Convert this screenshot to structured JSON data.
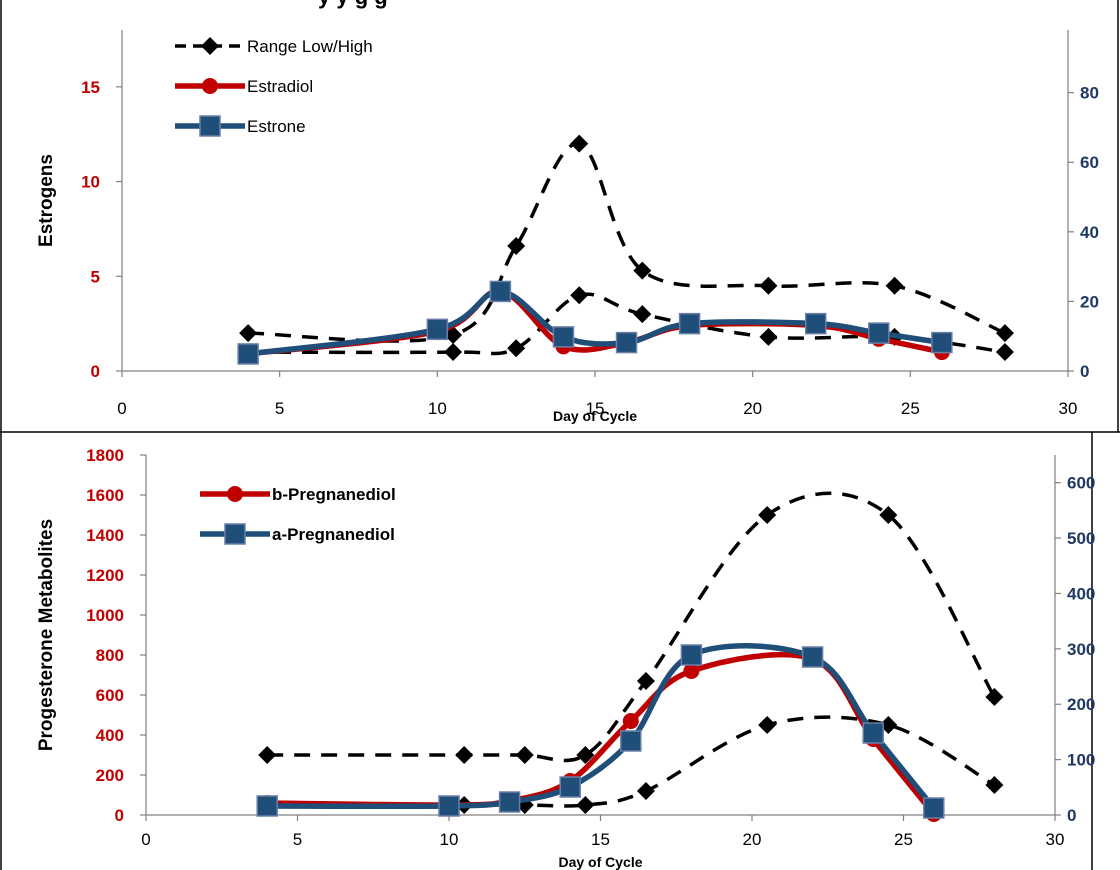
{
  "header": {
    "title_fragment": "y              y   g         g"
  },
  "colors": {
    "red": "#C00000",
    "blue": "#1F4E79",
    "black": "#000000",
    "right_axis": "#1F3864"
  },
  "chart_data": [
    {
      "id": "estrogens",
      "type": "line",
      "xlabel": "Day of Cycle",
      "ylabel": "Estrogens",
      "xlim": [
        0,
        30
      ],
      "xticks": [
        0,
        5,
        10,
        15,
        20,
        25,
        30
      ],
      "ylim_left": [
        0,
        18
      ],
      "yticks_left": [
        0,
        5,
        10,
        15
      ],
      "ylim_right": [
        0,
        98
      ],
      "yticks_right": [
        0,
        20,
        40,
        60,
        80
      ],
      "legend_position": "top-left",
      "series": [
        {
          "name": "Range Low/High",
          "style": "dashed",
          "marker": "diamond",
          "color": "#000000",
          "axis": "left",
          "x": [
            4,
            10.5,
            12.5,
            14.5,
            16.5,
            20.5,
            24.5,
            28
          ],
          "y": [
            2,
            1.9,
            6.6,
            12,
            5.3,
            4.5,
            4.5,
            2
          ]
        },
        {
          "name": "",
          "style": "dashed",
          "marker": "diamond",
          "color": "#000000",
          "axis": "left",
          "x": [
            4,
            10.5,
            12.5,
            14.5,
            16.5,
            20.5,
            24.5,
            28
          ],
          "y": [
            1,
            1,
            1.2,
            4,
            3,
            1.8,
            1.8,
            1
          ]
        },
        {
          "name": "Estradiol",
          "style": "solid",
          "marker": "circle",
          "color": "#C00000",
          "axis": "left",
          "x": [
            4,
            10,
            12,
            14,
            16,
            18,
            22,
            24,
            26
          ],
          "y": [
            0.9,
            2.1,
            4.2,
            1.3,
            1.5,
            2.4,
            2.4,
            1.7,
            1.0
          ]
        },
        {
          "name": "Estrone",
          "style": "solid",
          "marker": "square",
          "color": "#1F4E79",
          "axis": "left",
          "x": [
            4,
            10,
            12,
            14,
            16,
            18,
            22,
            24,
            26
          ],
          "y": [
            0.9,
            2.2,
            4.2,
            1.8,
            1.5,
            2.5,
            2.5,
            2.0,
            1.5
          ]
        }
      ]
    },
    {
      "id": "progesterone",
      "type": "line",
      "xlabel": "Day of Cycle",
      "ylabel": "Progesterone Metabolites",
      "xlim": [
        0,
        30
      ],
      "xticks": [
        0,
        5,
        10,
        15,
        20,
        25,
        30
      ],
      "ylim_left": [
        0,
        1800
      ],
      "yticks_left": [
        0,
        200,
        400,
        600,
        800,
        1000,
        1200,
        1400,
        1600,
        1800
      ],
      "ylim_right": [
        0,
        650
      ],
      "yticks_right": [
        0,
        100,
        200,
        300,
        400,
        500,
        600
      ],
      "legend_position": "top-left",
      "series": [
        {
          "name": "",
          "style": "dashed",
          "marker": "diamond",
          "color": "#000000",
          "axis": "left",
          "x": [
            4,
            10.5,
            12.5,
            14.5,
            16.5,
            20.5,
            24.5,
            28
          ],
          "y": [
            300,
            300,
            300,
            300,
            670,
            1500,
            1500,
            590
          ]
        },
        {
          "name": "",
          "style": "dashed",
          "marker": "diamond",
          "color": "#000000",
          "axis": "left",
          "x": [
            4,
            10.5,
            12.5,
            14.5,
            16.5,
            20.5,
            24.5,
            28
          ],
          "y": [
            50,
            50,
            50,
            50,
            120,
            450,
            450,
            150
          ]
        },
        {
          "name": "b-Pregnanediol",
          "style": "solid",
          "marker": "circle",
          "color": "#C00000",
          "axis": "left",
          "x": [
            4,
            10,
            12,
            14,
            16,
            18,
            22,
            24,
            26
          ],
          "y": [
            60,
            50,
            70,
            170,
            470,
            720,
            780,
            380,
            5
          ]
        },
        {
          "name": "a-Pregnanediol",
          "style": "solid",
          "marker": "square",
          "color": "#1F4E79",
          "axis": "left",
          "x": [
            4,
            10,
            12,
            14,
            16,
            18,
            22,
            24,
            26
          ],
          "y": [
            45,
            45,
            65,
            140,
            370,
            800,
            790,
            410,
            35
          ]
        }
      ]
    }
  ]
}
